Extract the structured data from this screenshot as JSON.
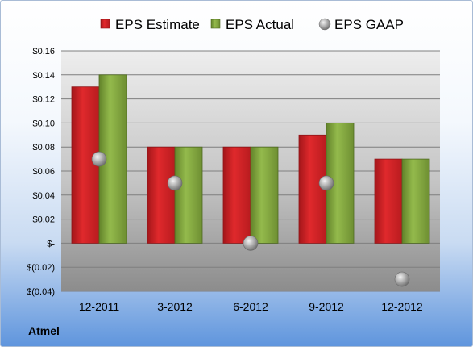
{
  "company": "Atmel",
  "chart_data": {
    "type": "bar",
    "categories": [
      "12-2011",
      "3-2012",
      "6-2012",
      "9-2012",
      "12-2012"
    ],
    "series": [
      {
        "name": "EPS Estimate",
        "kind": "bar",
        "color": "#cc1f22",
        "values": [
          0.13,
          0.08,
          0.08,
          0.09,
          0.07
        ]
      },
      {
        "name": "EPS Actual",
        "kind": "bar",
        "color": "#7fa13b",
        "values": [
          0.14,
          0.08,
          0.08,
          0.1,
          0.07
        ]
      },
      {
        "name": "EPS GAAP",
        "kind": "marker",
        "color": "#a9a9a9",
        "values": [
          0.07,
          0.05,
          0.0,
          0.05,
          -0.03
        ]
      }
    ],
    "y_ticks": [
      {
        "value": 0.16,
        "label": "$0.16"
      },
      {
        "value": 0.14,
        "label": "$0.14"
      },
      {
        "value": 0.12,
        "label": "$0.12"
      },
      {
        "value": 0.1,
        "label": "$0.10"
      },
      {
        "value": 0.08,
        "label": "$0.08"
      },
      {
        "value": 0.06,
        "label": "$0.06"
      },
      {
        "value": 0.04,
        "label": "$0.04"
      },
      {
        "value": 0.02,
        "label": "$0.02"
      },
      {
        "value": 0.0,
        "label": "$-"
      },
      {
        "value": -0.02,
        "label": "$(0.02)"
      },
      {
        "value": -0.04,
        "label": "$(0.04)"
      }
    ],
    "ylim": [
      -0.04,
      0.16
    ],
    "grid": true,
    "legend_position": "top"
  }
}
